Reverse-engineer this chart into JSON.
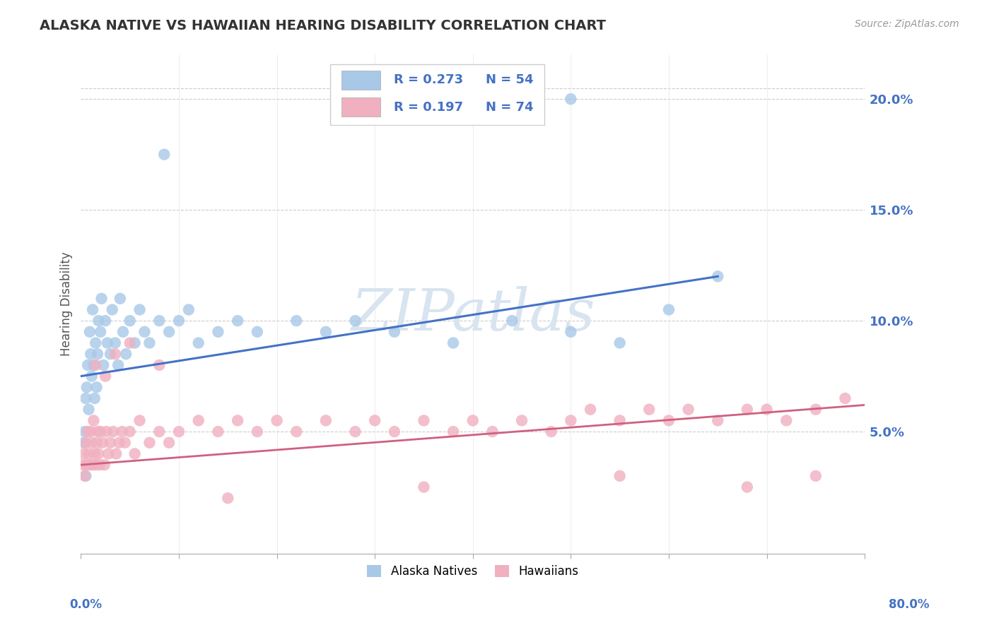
{
  "title": "ALASKA NATIVE VS HAWAIIAN HEARING DISABILITY CORRELATION CHART",
  "source": "Source: ZipAtlas.com",
  "ylabel": "Hearing Disability",
  "xlim": [
    0.0,
    80.0
  ],
  "ylim": [
    -0.5,
    22.0
  ],
  "yticks": [
    5.0,
    10.0,
    15.0,
    20.0
  ],
  "xticks": [
    0.0,
    10.0,
    20.0,
    30.0,
    40.0,
    50.0,
    60.0,
    70.0,
    80.0
  ],
  "color_blue": "#a8c8e8",
  "color_blue_line": "#4472c4",
  "color_pink": "#f0b0c0",
  "color_pink_line": "#d06080",
  "color_right_axis": "#4472c4",
  "watermark_color": "#d8e4f0",
  "alaska_line_x0": 0.0,
  "alaska_line_y0": 7.5,
  "alaska_line_x1": 65.0,
  "alaska_line_y1": 12.0,
  "hawaii_line_x0": 0.0,
  "hawaii_line_y0": 3.5,
  "hawaii_line_x1": 80.0,
  "hawaii_line_y1": 6.2
}
